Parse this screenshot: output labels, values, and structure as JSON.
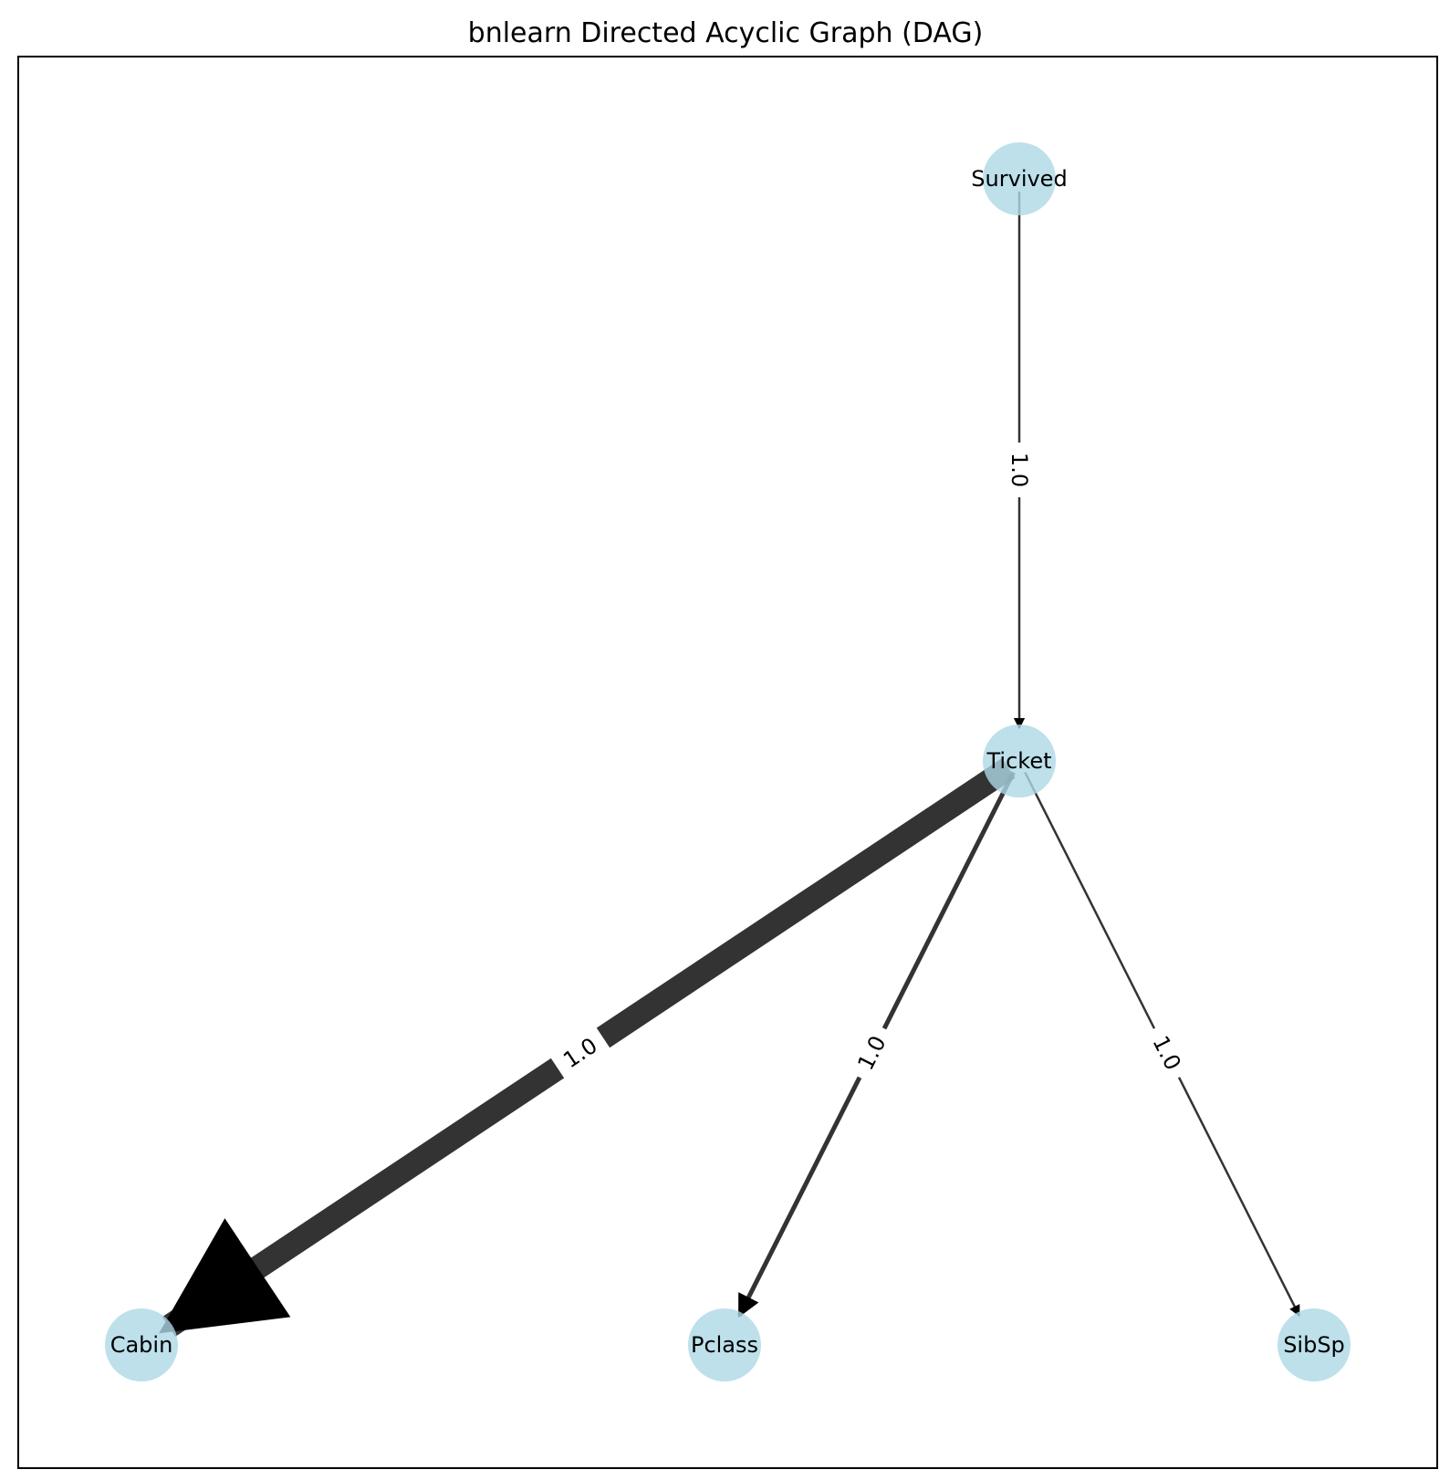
{
  "title": "bnlearn Directed Acyclic Graph (DAG)",
  "colors": {
    "node_fill": "#add8e6",
    "edge": "#000000",
    "frame": "#000000"
  },
  "nodes": [
    {
      "id": "survived",
      "label": "Survived"
    },
    {
      "id": "ticket",
      "label": "Ticket"
    },
    {
      "id": "cabin",
      "label": "Cabin"
    },
    {
      "id": "pclass",
      "label": "Pclass"
    },
    {
      "id": "sibsp",
      "label": "SibSp"
    }
  ],
  "edges": [
    {
      "source": "survived",
      "target": "ticket",
      "label": "1.0",
      "weight": "thin"
    },
    {
      "source": "ticket",
      "target": "cabin",
      "label": "1.0",
      "weight": "thick"
    },
    {
      "source": "ticket",
      "target": "pclass",
      "label": "1.0",
      "weight": "medium"
    },
    {
      "source": "ticket",
      "target": "sibsp",
      "label": "1.0",
      "weight": "thin"
    }
  ]
}
